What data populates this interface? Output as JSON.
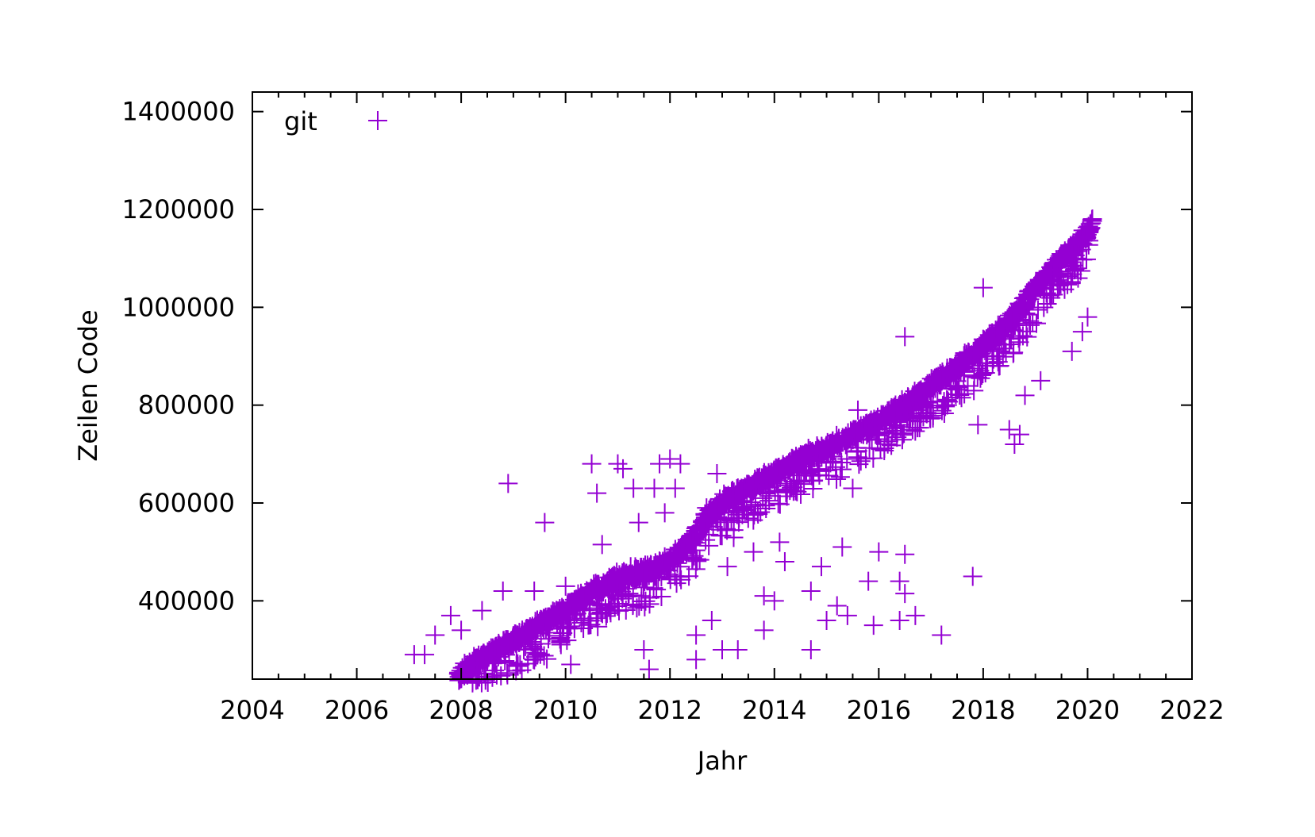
{
  "chart_data": {
    "type": "scatter",
    "title": "",
    "xlabel": "Jahr",
    "ylabel": "Zeilen Code",
    "xlim": [
      2004,
      2022
    ],
    "ylim": [
      240000,
      1440000
    ],
    "xticks": [
      2004,
      2006,
      2008,
      2010,
      2012,
      2014,
      2016,
      2018,
      2020,
      2022
    ],
    "yticks": [
      400000,
      600000,
      800000,
      1000000,
      1200000,
      1400000
    ],
    "xtick_labels": [
      "2004",
      "2006",
      "2008",
      "2010",
      "2012",
      "2014",
      "2016",
      "2018",
      "2020",
      "2022"
    ],
    "ytick_labels": [
      "400000",
      "600000",
      "800000",
      "1000000",
      "1200000",
      "1400000"
    ],
    "grid": false,
    "legend": {
      "position": "top-left",
      "entries": [
        {
          "name": "git",
          "marker": "plus",
          "color": "#9400d3"
        }
      ]
    },
    "color": "#9400d3",
    "series": [
      {
        "name": "git",
        "trend": [
          [
            2007.95,
            250000
          ],
          [
            2008.5,
            290000
          ],
          [
            2009.0,
            320000
          ],
          [
            2009.5,
            350000
          ],
          [
            2010.0,
            380000
          ],
          [
            2010.5,
            420000
          ],
          [
            2011.0,
            445000
          ],
          [
            2011.5,
            460000
          ],
          [
            2012.0,
            480000
          ],
          [
            2012.4,
            520000
          ],
          [
            2012.7,
            570000
          ],
          [
            2013.0,
            600000
          ],
          [
            2013.5,
            630000
          ],
          [
            2014.0,
            660000
          ],
          [
            2014.5,
            690000
          ],
          [
            2015.0,
            710000
          ],
          [
            2015.5,
            740000
          ],
          [
            2016.0,
            770000
          ],
          [
            2016.5,
            800000
          ],
          [
            2017.0,
            840000
          ],
          [
            2017.5,
            880000
          ],
          [
            2018.0,
            920000
          ],
          [
            2018.5,
            970000
          ],
          [
            2019.0,
            1040000
          ],
          [
            2019.5,
            1100000
          ],
          [
            2020.0,
            1150000
          ],
          [
            2020.1,
            1180000
          ]
        ],
        "outliers": [
          [
            2007.1,
            290000
          ],
          [
            2007.3,
            290000
          ],
          [
            2007.5,
            330000
          ],
          [
            2007.8,
            370000
          ],
          [
            2008.0,
            340000
          ],
          [
            2008.4,
            380000
          ],
          [
            2008.8,
            420000
          ],
          [
            2008.9,
            640000
          ],
          [
            2009.2,
            300000
          ],
          [
            2009.4,
            420000
          ],
          [
            2009.6,
            560000
          ],
          [
            2010.0,
            430000
          ],
          [
            2010.1,
            270000
          ],
          [
            2010.5,
            680000
          ],
          [
            2010.6,
            620000
          ],
          [
            2010.7,
            515000
          ],
          [
            2011.0,
            680000
          ],
          [
            2011.1,
            670000
          ],
          [
            2011.3,
            630000
          ],
          [
            2011.4,
            560000
          ],
          [
            2011.5,
            300000
          ],
          [
            2011.6,
            260000
          ],
          [
            2011.7,
            630000
          ],
          [
            2011.8,
            680000
          ],
          [
            2011.9,
            580000
          ],
          [
            2012.0,
            690000
          ],
          [
            2012.1,
            630000
          ],
          [
            2012.2,
            680000
          ],
          [
            2012.5,
            330000
          ],
          [
            2012.5,
            280000
          ],
          [
            2012.7,
            590000
          ],
          [
            2012.8,
            360000
          ],
          [
            2012.9,
            660000
          ],
          [
            2013.0,
            300000
          ],
          [
            2013.1,
            470000
          ],
          [
            2013.3,
            300000
          ],
          [
            2013.6,
            500000
          ],
          [
            2013.8,
            410000
          ],
          [
            2013.8,
            340000
          ],
          [
            2014.0,
            400000
          ],
          [
            2014.1,
            520000
          ],
          [
            2014.2,
            480000
          ],
          [
            2014.7,
            420000
          ],
          [
            2014.7,
            300000
          ],
          [
            2014.9,
            470000
          ],
          [
            2015.0,
            360000
          ],
          [
            2015.2,
            390000
          ],
          [
            2015.3,
            510000
          ],
          [
            2015.4,
            370000
          ],
          [
            2015.5,
            630000
          ],
          [
            2015.6,
            790000
          ],
          [
            2015.8,
            440000
          ],
          [
            2015.9,
            350000
          ],
          [
            2016.0,
            500000
          ],
          [
            2016.4,
            440000
          ],
          [
            2016.4,
            360000
          ],
          [
            2016.5,
            495000
          ],
          [
            2016.5,
            415000
          ],
          [
            2016.5,
            940000
          ],
          [
            2016.7,
            370000
          ],
          [
            2017.2,
            330000
          ],
          [
            2017.8,
            450000
          ],
          [
            2017.9,
            760000
          ],
          [
            2018.0,
            1040000
          ],
          [
            2018.5,
            750000
          ],
          [
            2018.6,
            720000
          ],
          [
            2018.7,
            740000
          ],
          [
            2018.8,
            820000
          ],
          [
            2019.1,
            850000
          ],
          [
            2019.7,
            910000
          ],
          [
            2019.9,
            950000
          ],
          [
            2020.0,
            980000
          ]
        ]
      }
    ]
  }
}
